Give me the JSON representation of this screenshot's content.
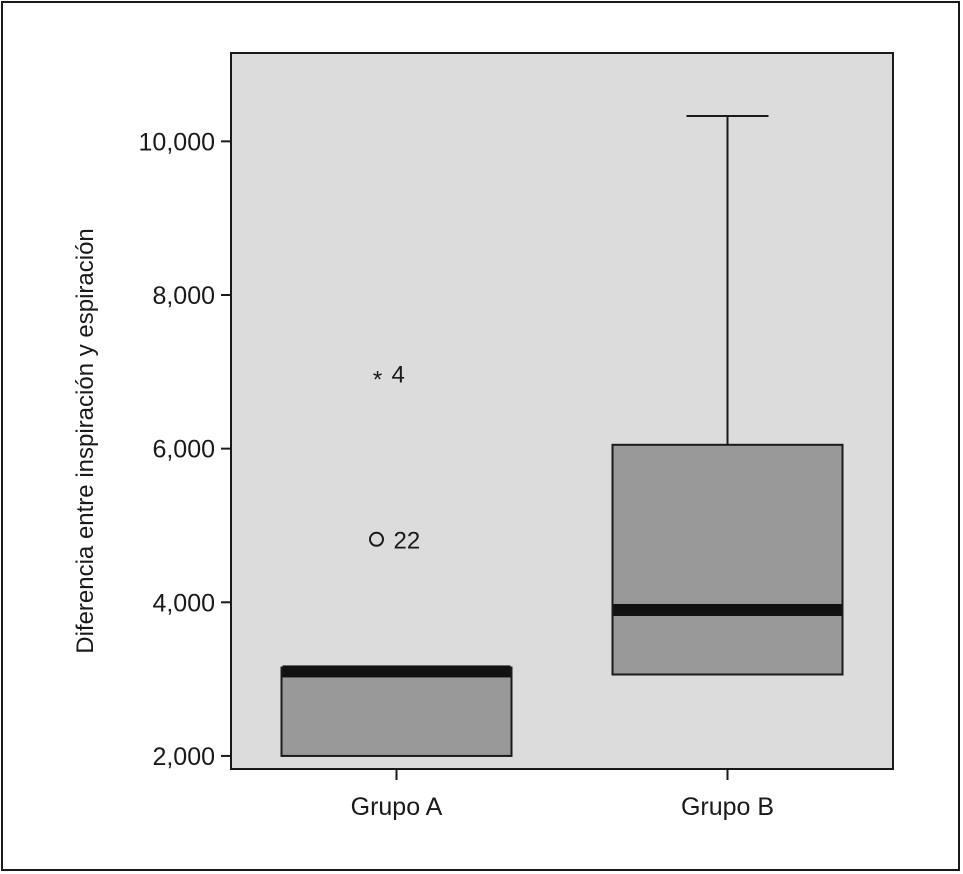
{
  "chart_data": {
    "type": "box",
    "ylabel": "Diferencia entre inspiración y espiración",
    "xlabel": "",
    "title": "",
    "ylim": [
      1830,
      11150
    ],
    "yticks": [
      2000,
      4000,
      6000,
      8000,
      10000
    ],
    "ytick_labels": [
      "2,000",
      "4,000",
      "6,000",
      "8,000",
      "10,000"
    ],
    "grid": false,
    "colors": {
      "plot_background": "#dcdcdc",
      "box_fill": "#999999",
      "median": "#111111",
      "axis": "#1a1a1a"
    },
    "groups": [
      {
        "name": "Grupo A",
        "min": 2000,
        "q1": 2000,
        "median": 3100,
        "q3": 3150,
        "max": 3150,
        "outliers": [
          {
            "value": 4820,
            "marker": "o",
            "label": "22"
          },
          {
            "value": 6980,
            "marker": "*",
            "label": "4"
          }
        ]
      },
      {
        "name": "Grupo B",
        "min": 3060,
        "q1": 3060,
        "median": 3900,
        "q3": 6050,
        "max": 10330,
        "outliers": []
      }
    ]
  }
}
